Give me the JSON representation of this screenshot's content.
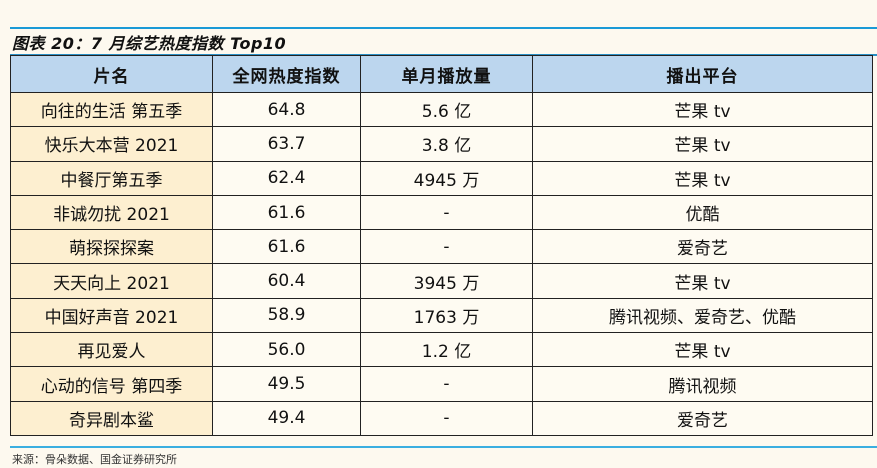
{
  "title": "图表 20：7 月综艺热度指数 Top10",
  "table": {
    "headers": [
      "片名",
      "全网热度指数",
      "单月播放量",
      "播出平台"
    ],
    "rows": [
      [
        "向往的生活 第五季",
        "64.8",
        "5.6 亿",
        "芒果 tv"
      ],
      [
        "快乐大本营 2021",
        "63.7",
        "3.8 亿",
        "芒果 tv"
      ],
      [
        "中餐厅第五季",
        "62.4",
        "4945 万",
        "芒果 tv"
      ],
      [
        "非诚勿扰 2021",
        "61.6",
        "-",
        "优酷"
      ],
      [
        "萌探探探案",
        "61.6",
        "-",
        "爱奇艺"
      ],
      [
        "天天向上 2021",
        "60.4",
        "3945 万",
        "芒果 tv"
      ],
      [
        "中国好声音 2021",
        "58.9",
        "1763 万",
        "腾讯视频、爱奇艺、优酷"
      ],
      [
        "再见爱人",
        "56.0",
        "1.2 亿",
        "芒果 tv"
      ],
      [
        "心动的信号 第四季",
        "49.5",
        "-",
        "腾讯视频"
      ],
      [
        "奇异剧本鲨",
        "49.4",
        "-",
        "爱奇艺"
      ]
    ]
  },
  "source": "来源：骨朵数据、国金证券研究所",
  "colors": {
    "header_bg": "#bcd6ee",
    "name_bg": "#fdefd0",
    "rule": "#1a9ad6"
  }
}
